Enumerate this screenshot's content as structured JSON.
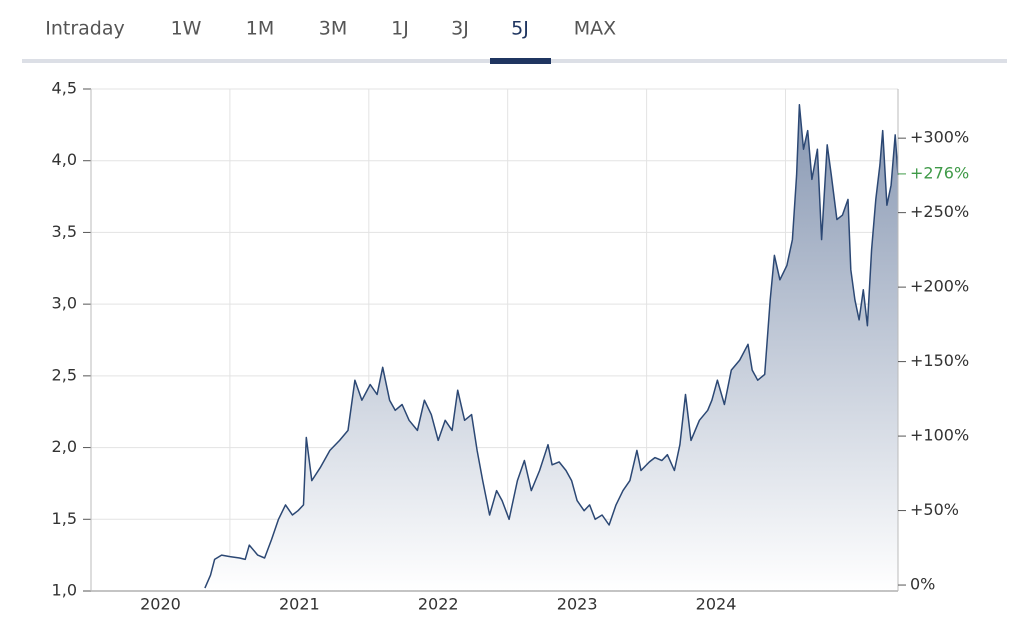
{
  "tabs": {
    "items": [
      "Intraday",
      "1W",
      "1M",
      "3M",
      "1J",
      "3J",
      "5J",
      "MAX"
    ],
    "active_index": 6
  },
  "chart_data": {
    "type": "area",
    "color": "#2c4874",
    "x": [
      2020.82,
      2020.86,
      2020.89,
      2020.94,
      2021.0,
      2021.07,
      2021.11,
      2021.14,
      2021.2,
      2021.25,
      2021.3,
      2021.35,
      2021.4,
      2021.45,
      2021.49,
      2021.53,
      2021.55,
      2021.59,
      2021.65,
      2021.72,
      2021.79,
      2021.85,
      2021.9,
      2021.95,
      2022.01,
      2022.06,
      2022.1,
      2022.15,
      2022.19,
      2022.24,
      2022.29,
      2022.35,
      2022.4,
      2022.45,
      2022.5,
      2022.55,
      2022.6,
      2022.64,
      2022.69,
      2022.74,
      2022.78,
      2022.82,
      2022.87,
      2022.92,
      2022.96,
      2023.01,
      2023.07,
      2023.12,
      2023.17,
      2023.23,
      2023.29,
      2023.32,
      2023.37,
      2023.42,
      2023.46,
      2023.5,
      2023.55,
      2023.59,
      2023.63,
      2023.68,
      2023.73,
      2023.78,
      2023.83,
      2023.88,
      2023.93,
      2023.96,
      2024.02,
      2024.06,
      2024.11,
      2024.15,
      2024.2,
      2024.24,
      2024.28,
      2024.32,
      2024.38,
      2024.44,
      2024.47,
      2024.51,
      2024.56,
      2024.61,
      2024.67,
      2024.73,
      2024.76,
      2024.8,
      2024.85,
      2024.89,
      2024.92,
      2024.96,
      2025.01,
      2025.05,
      2025.08,
      2025.1,
      2025.13,
      2025.16,
      2025.19,
      2025.23,
      2025.26,
      2025.3,
      2025.33,
      2025.37,
      2025.41,
      2025.45,
      2025.47,
      2025.5,
      2025.53,
      2025.56,
      2025.59,
      2025.62,
      2025.65,
      2025.68,
      2025.7,
      2025.73,
      2025.76,
      2025.79,
      2025.81
    ],
    "values": [
      1.02,
      1.11,
      1.22,
      1.25,
      1.24,
      1.23,
      1.22,
      1.32,
      1.25,
      1.23,
      1.36,
      1.5,
      1.6,
      1.53,
      1.56,
      1.6,
      2.07,
      1.77,
      1.86,
      1.98,
      2.05,
      2.12,
      2.47,
      2.33,
      2.44,
      2.37,
      2.56,
      2.33,
      2.26,
      2.3,
      2.19,
      2.12,
      2.33,
      2.23,
      2.05,
      2.19,
      2.12,
      2.4,
      2.19,
      2.23,
      1.98,
      1.77,
      1.53,
      1.7,
      1.63,
      1.5,
      1.77,
      1.91,
      1.7,
      1.84,
      2.02,
      1.88,
      1.9,
      1.84,
      1.77,
      1.63,
      1.56,
      1.6,
      1.5,
      1.53,
      1.46,
      1.6,
      1.7,
      1.77,
      1.98,
      1.84,
      1.9,
      1.93,
      1.91,
      1.95,
      1.84,
      2.02,
      2.37,
      2.05,
      2.19,
      2.26,
      2.33,
      2.47,
      2.3,
      2.54,
      2.61,
      2.72,
      2.54,
      2.47,
      2.51,
      3.03,
      3.34,
      3.17,
      3.27,
      3.45,
      3.9,
      4.39,
      4.08,
      4.21,
      3.87,
      4.08,
      3.45,
      4.11,
      3.9,
      3.59,
      3.62,
      3.73,
      3.24,
      3.03,
      2.89,
      3.1,
      2.85,
      3.38,
      3.73,
      3.97,
      4.21,
      3.69,
      3.83,
      4.18,
      3.9
    ],
    "xlim": [
      2020,
      2025.81
    ],
    "xticks": [
      {
        "value": 2020.5,
        "label": "2020"
      },
      {
        "value": 2021.5,
        "label": "2021"
      },
      {
        "value": 2022.5,
        "label": "2022"
      },
      {
        "value": 2023.5,
        "label": "2023"
      },
      {
        "value": 2024.5,
        "label": "2024"
      }
    ],
    "xgrid": [
      2021,
      2022,
      2023,
      2024,
      2025
    ],
    "ylim": [
      1.0,
      4.5
    ],
    "yticks": [
      {
        "value": 1.0,
        "label": "1,0"
      },
      {
        "value": 1.5,
        "label": "1,5"
      },
      {
        "value": 2.0,
        "label": "2,0"
      },
      {
        "value": 2.5,
        "label": "2,5"
      },
      {
        "value": 3.0,
        "label": "3,0"
      },
      {
        "value": 3.5,
        "label": "3,5"
      },
      {
        "value": 4.0,
        "label": "4,0"
      },
      {
        "value": 4.5,
        "label": "4,5"
      }
    ],
    "y2lim": [
      -4,
      333
    ],
    "y2ticks": [
      {
        "value": 0,
        "label": "0%"
      },
      {
        "value": 50,
        "label": "+50%"
      },
      {
        "value": 100,
        "label": "+100%"
      },
      {
        "value": 150,
        "label": "+150%"
      },
      {
        "value": 200,
        "label": "+200%"
      },
      {
        "value": 250,
        "label": "+250%"
      },
      {
        "value": 300,
        "label": "+300%"
      }
    ],
    "current": {
      "value": 276,
      "label": "+276%",
      "color": "#3f9a48"
    },
    "grid": true
  }
}
